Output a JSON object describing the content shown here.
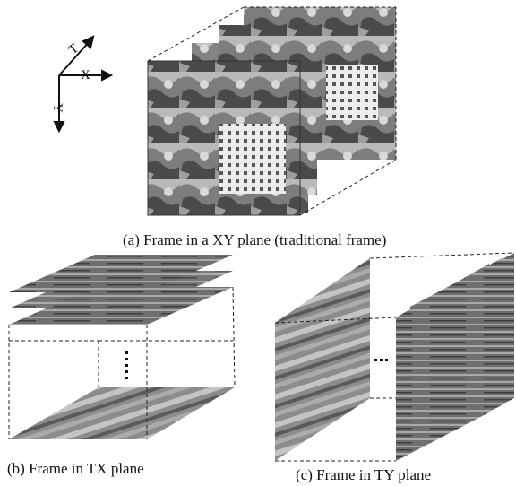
{
  "axes": {
    "x_label": "X",
    "y_label": "Y",
    "t_label": "T"
  },
  "captions": {
    "a": "(a) Frame in a XY plane (traditional frame)",
    "b": "(b) Frame in TX plane",
    "c": "(c) Frame in TY plane"
  },
  "colors": {
    "stroke": "#111111",
    "dark": "#3a3a3a",
    "mid": "#8a8a8a",
    "light": "#cfcfcf",
    "paper": "#f2f2ee"
  }
}
